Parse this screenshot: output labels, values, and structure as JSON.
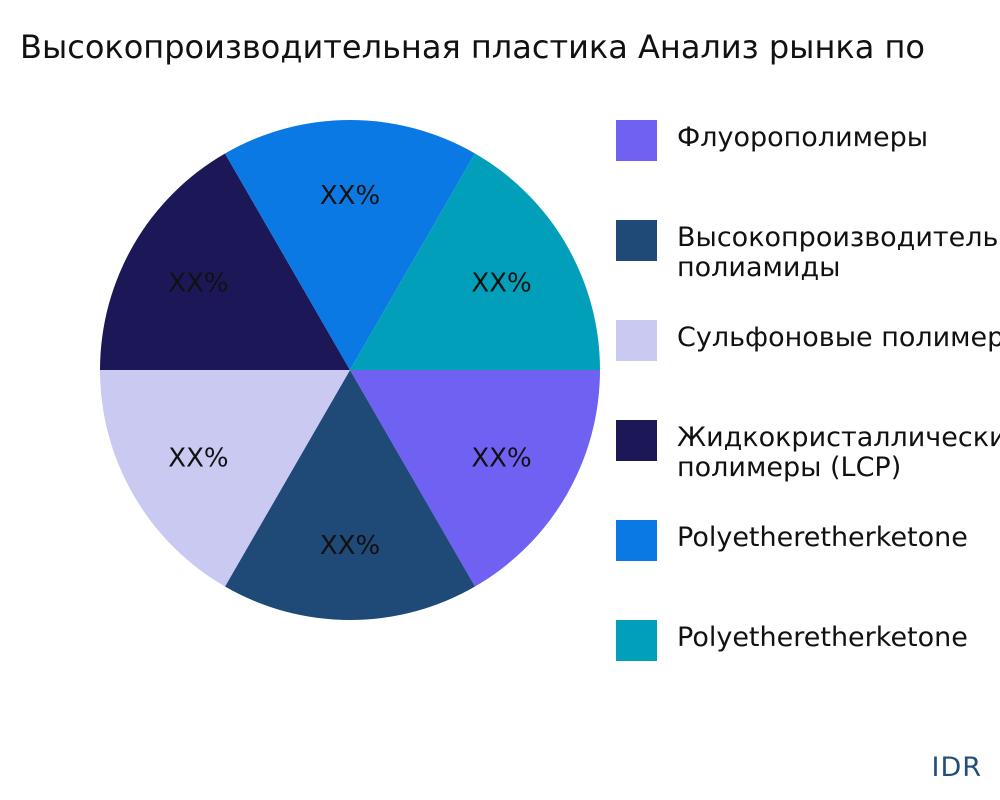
{
  "chart_data": {
    "type": "pie",
    "title": "Высокопроизводительная пластика Анализ рынка по",
    "slices": [
      {
        "name": "Флуорополимеры",
        "value": 16.67,
        "label": "XX%",
        "color": "#6f61f2"
      },
      {
        "name": "Высокопроизводительные\nполиамиды",
        "value": 16.67,
        "label": "XX%",
        "color": "#1f4a78"
      },
      {
        "name": "Сульфоновые полимеры",
        "value": 16.67,
        "label": "XX%",
        "color": "#c9c9f2"
      },
      {
        "name": "Жидкокристаллические\nполимеры (LCP)",
        "value": 16.67,
        "label": "XX%",
        "color": "#1c1858"
      },
      {
        "name": "Polyetheretherketone",
        "value": 16.67,
        "label": "XX%",
        "color": "#0b79e4"
      },
      {
        "name": "Polyetheretherketone",
        "value": 16.67,
        "label": "XX%",
        "color": "#019fb9"
      }
    ],
    "legend_position": "right"
  },
  "brand": "IDR"
}
